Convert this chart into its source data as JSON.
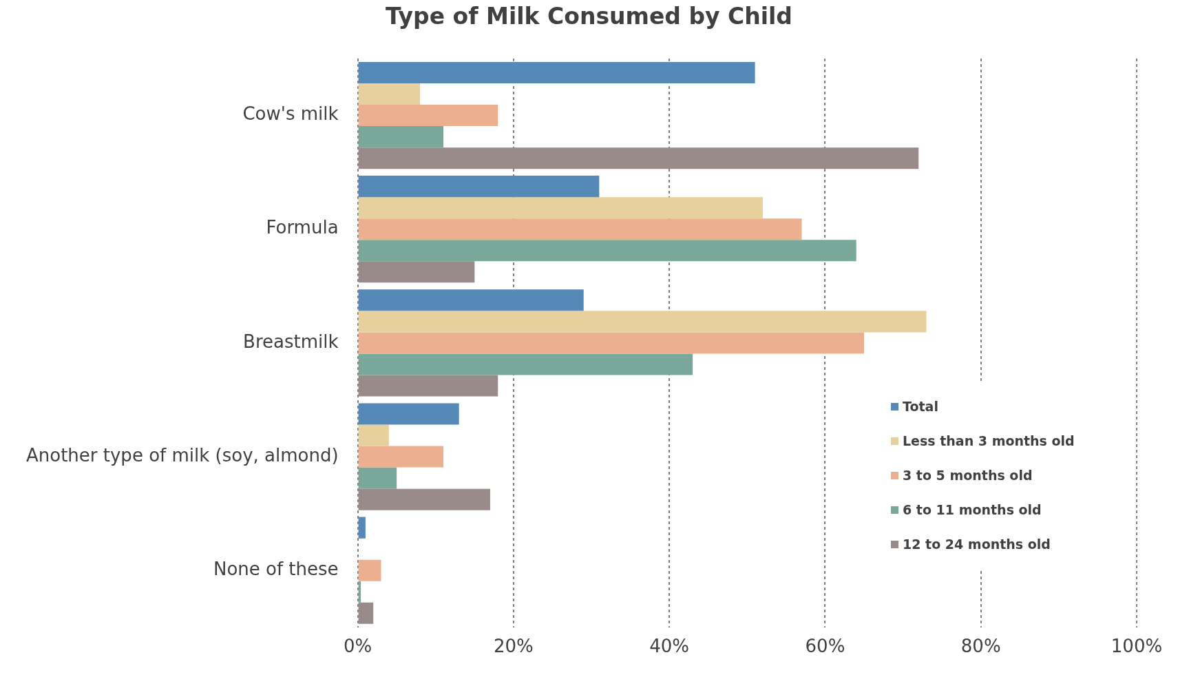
{
  "chart_data": {
    "type": "bar",
    "orientation": "horizontal",
    "title": "Type of Milk Consumed by Child",
    "categories": [
      "Cow's milk",
      "Formula",
      "Breastmilk",
      "Another type of milk (soy, almond)",
      "None of these"
    ],
    "series": [
      {
        "name": "Total",
        "color": "#5589b8",
        "values": [
          51,
          31,
          29,
          13,
          1
        ]
      },
      {
        "name": "Less than 3 months old",
        "color": "#e8d09c",
        "values": [
          8,
          52,
          73,
          4,
          0
        ]
      },
      {
        "name": "3 to 5 months old",
        "color": "#ecb090",
        "values": [
          18,
          57,
          65,
          11,
          3
        ]
      },
      {
        "name": "6 to 11 months old",
        "color": "#7aa89a",
        "values": [
          11,
          64,
          43,
          5,
          0.4
        ]
      },
      {
        "name": "12 to 24 months old",
        "color": "#988b89",
        "values": [
          72,
          15,
          18,
          17,
          2
        ]
      }
    ],
    "xlim": [
      0,
      100
    ],
    "xticks": [
      {
        "value": 0,
        "label": "0%"
      },
      {
        "value": 20,
        "label": "20%"
      },
      {
        "value": 40,
        "label": "40%"
      },
      {
        "value": 60,
        "label": "60%"
      },
      {
        "value": 80,
        "label": "80%"
      },
      {
        "value": 100,
        "label": "100%"
      }
    ],
    "grid": "x",
    "legend": "bottom right"
  }
}
